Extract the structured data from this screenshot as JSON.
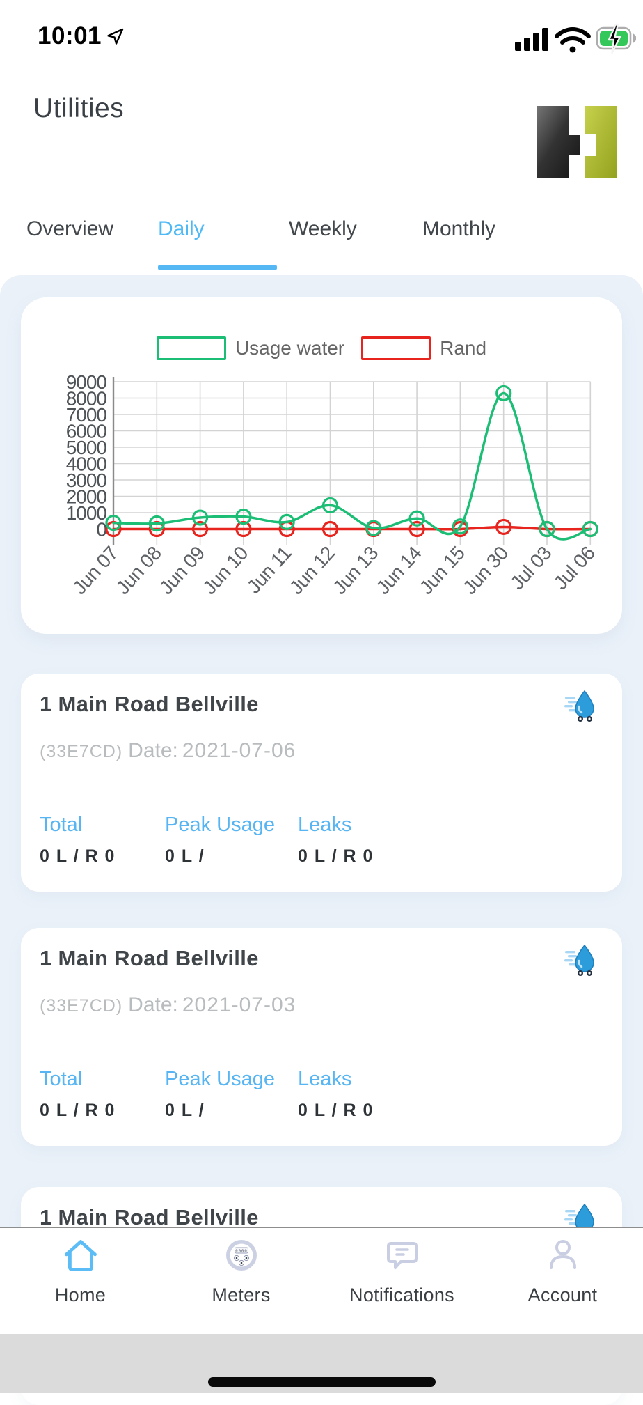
{
  "status_bar": {
    "time": "10:01"
  },
  "header": {
    "title": "Utilities"
  },
  "tabs": {
    "items": [
      {
        "label": "Overview",
        "active": false
      },
      {
        "label": "Daily",
        "active": true
      },
      {
        "label": "Weekly",
        "active": false
      },
      {
        "label": "Monthly",
        "active": false
      }
    ]
  },
  "chart_data": {
    "type": "line",
    "x_labels": [
      "Jun 07",
      "Jun 08",
      "Jun 09",
      "Jun 10",
      "Jun 11",
      "Jun 12",
      "Jun 13",
      "Jun 14",
      "Jun 15",
      "Jun 30",
      "Jul 03",
      "Jul 06"
    ],
    "y_ticks": [
      0,
      1000,
      2000,
      3000,
      4000,
      5000,
      6000,
      7000,
      8000,
      9000
    ],
    "ylim": [
      0,
      9000
    ],
    "grid": true,
    "legend_position": "top",
    "marker": "open-circle",
    "series": [
      {
        "name": "Usage water",
        "color": "#1CBE76",
        "values": [
          380,
          340,
          700,
          760,
          430,
          1450,
          60,
          650,
          160,
          8300,
          0,
          0
        ]
      },
      {
        "name": "Rand",
        "color": "#E8241E",
        "values": [
          0,
          0,
          0,
          0,
          0,
          0,
          0,
          0,
          0,
          130,
          0,
          0
        ]
      }
    ]
  },
  "cards": [
    {
      "title": "1 Main Road Bellville",
      "icon": "water-delivery-icon",
      "meter_id": "(33E7CD)",
      "date_label": "Date:",
      "date_value": "2021-07-06",
      "stats": [
        {
          "label": "Total",
          "value": "0 L / R 0"
        },
        {
          "label": "Peak Usage",
          "value": "0 L /"
        },
        {
          "label": "Leaks",
          "value": "0 L / R 0"
        }
      ]
    },
    {
      "title": "1 Main Road Bellville",
      "icon": "water-delivery-icon",
      "meter_id": "(33E7CD)",
      "date_label": "Date:",
      "date_value": "2021-07-03",
      "stats": [
        {
          "label": "Total",
          "value": "0 L / R 0"
        },
        {
          "label": "Peak Usage",
          "value": "0 L /"
        },
        {
          "label": "Leaks",
          "value": "0 L / R 0"
        }
      ]
    },
    {
      "title": "1 Main Road Bellville",
      "icon": "water-delivery-icon",
      "partial": true
    }
  ],
  "bottom_nav": {
    "items": [
      {
        "label": "Home",
        "icon": "home-icon",
        "active": true
      },
      {
        "label": "Meters",
        "icon": "meter-icon",
        "active": false
      },
      {
        "label": "Notifications",
        "icon": "notifications-icon",
        "active": false
      },
      {
        "label": "Account",
        "icon": "account-icon",
        "active": false
      }
    ]
  },
  "colors": {
    "accent_blue": "#54B7F5",
    "series_green": "#1CBE76",
    "series_red": "#E8241E",
    "section_bg": "#EAF1F9",
    "nav_inactive_icon": "#C9CEE2",
    "battery_green": "#34C759"
  }
}
